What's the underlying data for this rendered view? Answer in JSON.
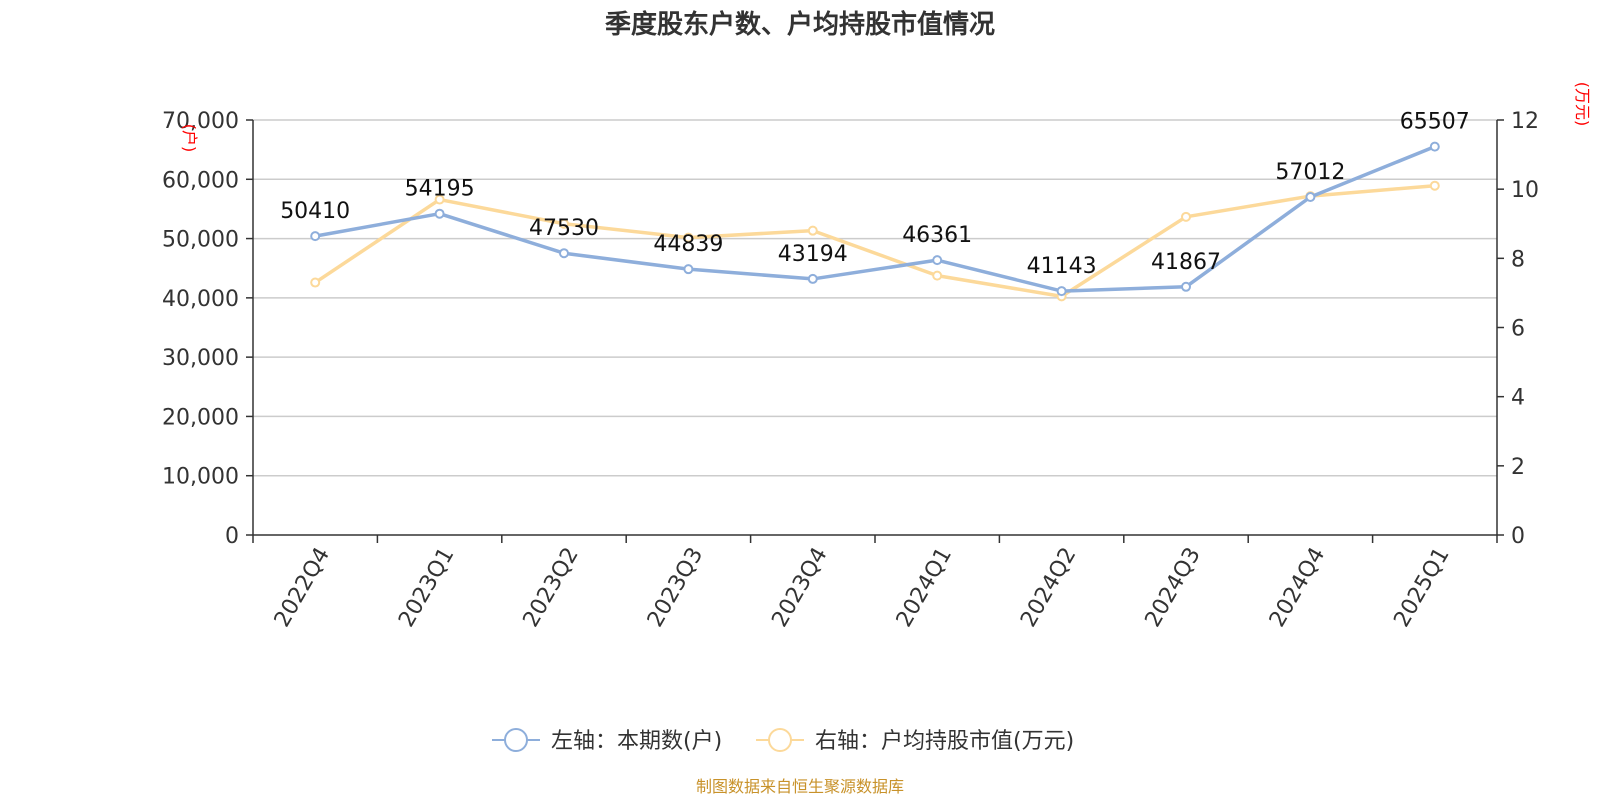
{
  "chart_data": {
    "type": "line",
    "title": "季度股东户数、户均持股市值情况",
    "categories": [
      "2022Q4",
      "2023Q1",
      "2023Q2",
      "2023Q3",
      "2023Q4",
      "2024Q1",
      "2024Q2",
      "2024Q3",
      "2024Q4",
      "2025Q1"
    ],
    "left_axis": {
      "unit": "(户)",
      "ylim": [
        0,
        70000
      ],
      "ticks": [
        "0",
        "10,000",
        "20,000",
        "30,000",
        "40,000",
        "50,000",
        "60,000",
        "70,000"
      ],
      "tick_values": [
        0,
        10000,
        20000,
        30000,
        40000,
        50000,
        60000,
        70000
      ]
    },
    "right_axis": {
      "unit": "(万元)",
      "ylim": [
        0,
        12
      ],
      "ticks": [
        "0",
        "2",
        "4",
        "6",
        "8",
        "10",
        "12"
      ],
      "tick_values": [
        0,
        2,
        4,
        6,
        8,
        10,
        12
      ]
    },
    "series": [
      {
        "name": "左轴：本期数(户)",
        "axis": "left",
        "color": "#8eaedb",
        "values": [
          50410,
          54195,
          47530,
          44839,
          43194,
          46361,
          41143,
          41867,
          57012,
          65507
        ],
        "labels": [
          "50410",
          "54195",
          "47530",
          "44839",
          "43194",
          "46361",
          "41143",
          "41867",
          "57012",
          "65507"
        ]
      },
      {
        "name": "右轴：户均持股市值(万元)",
        "axis": "right",
        "color": "#fcd99a",
        "values": [
          7.3,
          9.7,
          9.0,
          8.6,
          8.8,
          7.5,
          6.9,
          9.2,
          9.8,
          10.1
        ]
      }
    ],
    "grid": true,
    "legend_position": "bottom-center",
    "source": "制图数据来自恒生聚源数据库"
  }
}
